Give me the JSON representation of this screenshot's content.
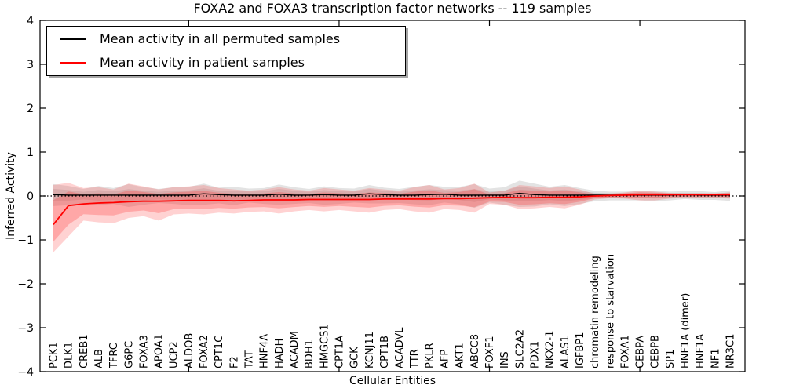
{
  "chart_data": {
    "type": "line",
    "title": "FOXA2 and FOXA3 transcription factor networks -- 119 samples",
    "xlabel": "Cellular Entities",
    "ylabel": "Inferred Activity",
    "ylim": [
      -4,
      4
    ],
    "ytick_values": [
      4,
      3,
      2,
      1,
      0,
      -1,
      -2,
      -3,
      -4
    ],
    "ytick_labels": [
      "4",
      "3",
      "2",
      "1",
      "0",
      "−1",
      "−2",
      "−3",
      "−4"
    ],
    "top_tick_indices": [
      9,
      19,
      29,
      39
    ],
    "grid": false,
    "legend_position": "upper left",
    "xticklabel_rotation": 90,
    "zero_line": {
      "style": "dotted",
      "color": "#000000",
      "y": 0
    },
    "categories": [
      "PCK1",
      "DLK1",
      "CREB1",
      "ALB",
      "TFRC",
      "G6PC",
      "FOXA3",
      "APOA1",
      "UCP2",
      "ALDOB",
      "FOXA2",
      "CPT1C",
      "F2",
      "TAT",
      "HNF4A",
      "HADH",
      "ACADM",
      "BDH1",
      "HMGCS1",
      "CPT1A",
      "GCK",
      "KCNJ11",
      "CPT1B",
      "ACADVL",
      "TTR",
      "PKLR",
      "AFP",
      "AKT1",
      "ABCC8",
      "FOXF1",
      "INS",
      "SLC2A2",
      "PDX1",
      "NKX2-1",
      "ALAS1",
      "IGFBP1",
      "chromatin remodeling",
      "response to starvation",
      "FOXA1",
      "CEBPA",
      "CEBPB",
      "SP1",
      "HNF1A (dimer)",
      "HNF1A",
      "NF1",
      "NR3C1"
    ],
    "series": [
      {
        "name": "Mean activity in all permuted samples",
        "color": "#000000",
        "band_color": "#999999",
        "values": [
          0.03,
          0.02,
          0.02,
          0.02,
          0.02,
          0.02,
          0.02,
          0.02,
          0.02,
          0.02,
          0.05,
          0.03,
          0.02,
          0.02,
          0.02,
          0.04,
          0.02,
          0.02,
          0.03,
          0.02,
          0.02,
          0.05,
          0.03,
          0.02,
          0.02,
          0.03,
          0.04,
          0.02,
          0.02,
          0.02,
          0.02,
          0.06,
          0.03,
          0.02,
          0.02,
          0.02,
          0.02,
          0.02,
          0.02,
          0.02,
          0.02,
          0.02,
          0.03,
          0.02,
          0.02,
          0.02
        ],
        "band_upper": [
          0.27,
          0.23,
          0.16,
          0.23,
          0.18,
          0.27,
          0.2,
          0.16,
          0.2,
          0.21,
          0.28,
          0.19,
          0.21,
          0.17,
          0.18,
          0.26,
          0.2,
          0.16,
          0.22,
          0.18,
          0.17,
          0.25,
          0.19,
          0.16,
          0.21,
          0.25,
          0.21,
          0.21,
          0.27,
          0.17,
          0.2,
          0.35,
          0.28,
          0.21,
          0.25,
          0.18,
          0.12,
          0.1,
          0.1,
          0.12,
          0.12,
          0.1,
          0.11,
          0.11,
          0.09,
          0.13
        ],
        "band_lower": [
          -0.23,
          -0.21,
          -0.16,
          -0.21,
          -0.18,
          -0.25,
          -0.2,
          -0.16,
          -0.18,
          -0.21,
          -0.2,
          -0.17,
          -0.21,
          -0.15,
          -0.18,
          -0.2,
          -0.18,
          -0.16,
          -0.2,
          -0.18,
          -0.15,
          -0.17,
          -0.17,
          -0.16,
          -0.19,
          -0.21,
          -0.15,
          -0.19,
          -0.27,
          -0.15,
          -0.2,
          -0.25,
          -0.24,
          -0.19,
          -0.23,
          -0.18,
          -0.12,
          -0.1,
          -0.1,
          -0.1,
          -0.12,
          -0.1,
          -0.07,
          -0.09,
          -0.09,
          -0.11
        ]
      },
      {
        "name": "Mean activity in patient samples",
        "color": "#ff0000",
        "band_color": "#ff3030",
        "values": [
          -0.65,
          -0.22,
          -0.18,
          -0.16,
          -0.15,
          -0.13,
          -0.12,
          -0.12,
          -0.11,
          -0.1,
          -0.1,
          -0.1,
          -0.11,
          -0.1,
          -0.09,
          -0.09,
          -0.09,
          -0.08,
          -0.08,
          -0.08,
          -0.08,
          -0.08,
          -0.07,
          -0.07,
          -0.07,
          -0.07,
          -0.06,
          -0.06,
          -0.05,
          -0.04,
          -0.03,
          -0.04,
          -0.04,
          -0.03,
          -0.03,
          -0.02,
          0.0,
          0.01,
          0.02,
          0.03,
          0.03,
          0.03,
          0.03,
          0.03,
          0.03,
          0.03
        ],
        "band_upper": [
          0.25,
          0.3,
          0.18,
          0.2,
          0.15,
          0.28,
          0.22,
          0.15,
          0.2,
          0.22,
          0.25,
          0.18,
          0.15,
          0.12,
          0.15,
          0.2,
          0.15,
          0.12,
          0.18,
          0.15,
          0.12,
          0.18,
          0.15,
          0.12,
          0.2,
          0.25,
          0.15,
          0.18,
          0.28,
          0.08,
          0.12,
          0.25,
          0.22,
          0.18,
          0.22,
          0.15,
          0.05,
          0.05,
          0.08,
          0.12,
          0.1,
          0.07,
          0.06,
          0.06,
          0.06,
          0.08
        ],
        "band_lower": [
          -1.28,
          -0.92,
          -0.56,
          -0.6,
          -0.62,
          -0.5,
          -0.46,
          -0.56,
          -0.42,
          -0.4,
          -0.42,
          -0.38,
          -0.4,
          -0.36,
          -0.35,
          -0.4,
          -0.35,
          -0.32,
          -0.35,
          -0.32,
          -0.35,
          -0.38,
          -0.32,
          -0.3,
          -0.35,
          -0.38,
          -0.3,
          -0.32,
          -0.38,
          -0.18,
          -0.2,
          -0.3,
          -0.28,
          -0.25,
          -0.28,
          -0.2,
          -0.08,
          -0.05,
          -0.06,
          -0.1,
          -0.1,
          -0.06,
          -0.04,
          -0.04,
          -0.04,
          -0.06
        ]
      }
    ]
  }
}
